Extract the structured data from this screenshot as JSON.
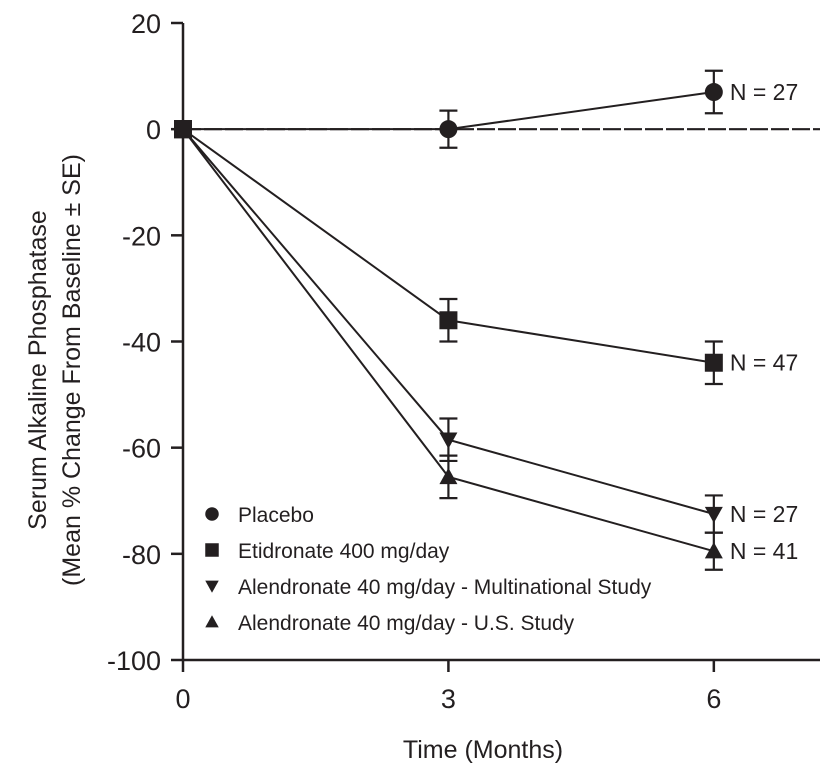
{
  "chart_data": {
    "type": "line",
    "xlabel": "Time (Months)",
    "ylabel_lines": [
      "Serum Alkaline Phosphatase",
      "(Mean % Change From Baseline ± SE)"
    ],
    "x": [
      0,
      3,
      6
    ],
    "xticks": [
      0,
      3,
      6
    ],
    "xlim": [
      0,
      7.2
    ],
    "yticks": [
      20,
      0,
      -20,
      -40,
      -60,
      -80,
      -100
    ],
    "ylim": [
      -100,
      20
    ],
    "reference_line": {
      "y": 0,
      "style": "dashed"
    },
    "grid": false,
    "legend_position": "bottom-left",
    "series": [
      {
        "name": "Placebo",
        "marker": "circle",
        "values": [
          0,
          0,
          7
        ],
        "se": [
          0,
          3.5,
          4
        ],
        "n_label": "N = 27"
      },
      {
        "name": "Etidronate 400 mg/day",
        "marker": "square",
        "values": [
          0,
          -36,
          -44
        ],
        "se": [
          0,
          4,
          4
        ],
        "n_label": "N = 47"
      },
      {
        "name": "Alendronate 40 mg/day - Multinational Study",
        "marker": "triangle-down",
        "values": [
          0,
          -58.5,
          -72.5
        ],
        "se": [
          0,
          4,
          3.5
        ],
        "n_label": "N = 27"
      },
      {
        "name": "Alendronate 40 mg/day - U.S. Study",
        "marker": "triangle-up",
        "values": [
          0,
          -65.5,
          -79.5
        ],
        "se": [
          0,
          4,
          3.5
        ],
        "n_label": "N = 41"
      }
    ]
  }
}
